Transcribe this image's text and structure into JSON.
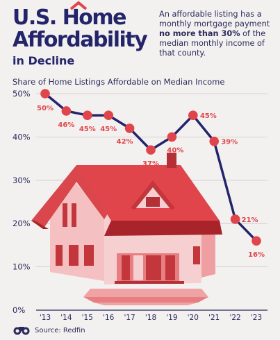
{
  "header": {
    "title_line1": "U.S. Home",
    "title_line2": "Affordability",
    "title_line3": "in Decline",
    "description_pre": "An affordable listing has a monthly mortgage payment ",
    "description_bold": "no more than 30%",
    "description_post": " of the median monthly income of that county."
  },
  "chart_subtitle": "Share of Home Listings Affordable on Median Income",
  "footer": {
    "source": "Source: Redfin"
  },
  "colors": {
    "navy": "#24246b",
    "red": "#e0454b",
    "background": "#f3f1ef"
  },
  "chart_data": {
    "type": "line",
    "title": "",
    "xlabel": "",
    "ylabel": "Share of Home Listings Affordable on Median Income",
    "categories": [
      "'13",
      "'14",
      "'15",
      "'16",
      "'17",
      "'18",
      "'19",
      "'20",
      "'21",
      "'22",
      "'23"
    ],
    "series": [
      {
        "values": [
          50,
          46,
          45,
          45,
          42,
          37,
          40,
          45,
          39,
          21,
          16
        ],
        "labels": [
          "50%",
          "46%",
          "45%",
          "45%",
          "42%",
          "37%",
          "40%",
          "45%",
          "39%",
          "21%",
          "16%"
        ]
      }
    ],
    "ylim": [
      0,
      50
    ],
    "yticks": [
      0,
      10,
      20,
      30,
      40,
      50
    ],
    "ytick_labels": [
      "0%",
      "10%",
      "20%",
      "30%",
      "40%",
      "50%"
    ],
    "grid": true,
    "legend": "none"
  }
}
